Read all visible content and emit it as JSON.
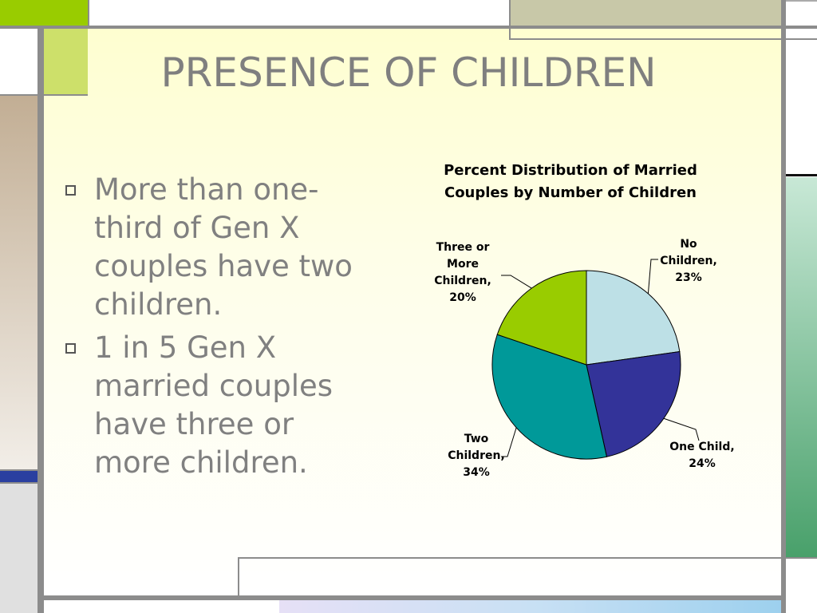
{
  "slide": {
    "title": "PRESENCE OF CHILDREN",
    "bullets": [
      "More than one-third of Gen X couples have two children.",
      "1 in 5 Gen X married couples have three or more children."
    ]
  },
  "colors": {
    "accent_green": "#cde06a",
    "accent_khaki": "#c8c8a8",
    "accent_tan": "#c2ae94",
    "accent_blue": "#2a3fa0",
    "accent_teal_green": "#48a06a",
    "frame_gray": "#8c8c8c"
  },
  "chart_data": {
    "type": "pie",
    "title": "Percent Distribution of Married Couples by Number of Children",
    "title_lines": [
      "Percent Distribution of Married",
      "Couples by Number of Children"
    ],
    "slices": [
      {
        "label": "No Children",
        "value": 23,
        "color": "#bde0e6",
        "label_text": "No\nChildren,\n23%"
      },
      {
        "label": "One Child",
        "value": 24,
        "color": "#333399",
        "label_text": "One Child,\n24%"
      },
      {
        "label": "Two Children",
        "value": 34,
        "color": "#009999",
        "label_text": "Two\nChildren,\n34%"
      },
      {
        "label": "Three or More Children",
        "value": 20,
        "color": "#99cc00",
        "label_text": "Three or\nMore\nChildren,\n20%"
      }
    ],
    "legend": "none",
    "start_angle_deg": 0,
    "direction": "clockwise"
  }
}
